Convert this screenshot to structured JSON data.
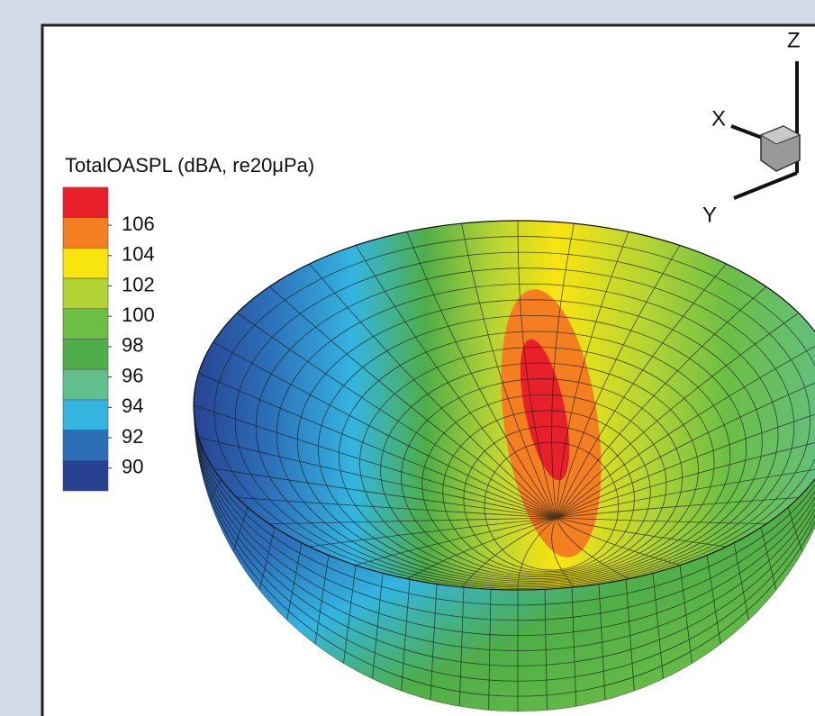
{
  "chart_data": {
    "type": "contour",
    "legend_title": "TotalOASPL (dBA, re20μPa)",
    "levels": [
      106,
      104,
      102,
      100,
      98,
      96,
      94,
      92,
      90
    ],
    "colors": [
      "#e8202a",
      "#f47f20",
      "#f9e510",
      "#b4d334",
      "#6bbf45",
      "#4fae48",
      "#62bf8e",
      "#34b5e0",
      "#2c6fb8",
      "#27408f"
    ],
    "axis_labels": [
      "X",
      "Y",
      "Z"
    ]
  }
}
